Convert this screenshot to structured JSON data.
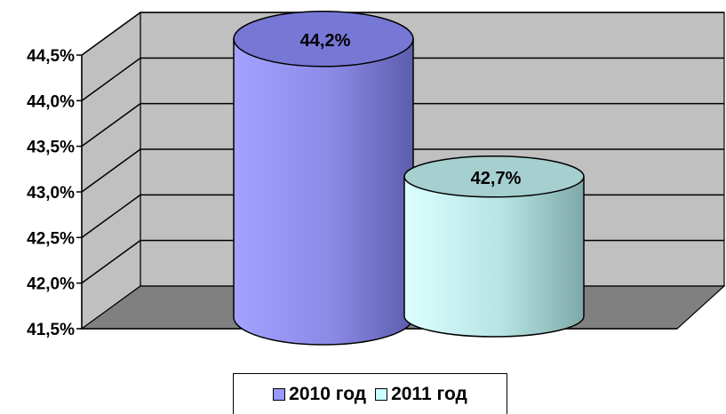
{
  "chart_data": {
    "type": "bar",
    "bar_shape": "cylinder-3d",
    "categories": [
      "2010 год",
      "2011 год"
    ],
    "values": [
      44.2,
      42.7
    ],
    "data_labels": [
      "44,2%",
      "42,7%"
    ],
    "ylim": [
      41.5,
      44.5
    ],
    "yticks": [
      "41,5%",
      "42,0%",
      "42,5%",
      "43,0%",
      "43,5%",
      "44,0%",
      "44,5%"
    ],
    "grid": true,
    "legend_position": "bottom",
    "legend": [
      {
        "label": "2010 год",
        "color": "#9999ff"
      },
      {
        "label": "2011 год",
        "color": "#ccffff"
      }
    ],
    "colors": {
      "back_wall": "#c0c0c0",
      "floor": "#808080",
      "series_2010": "#9999ff",
      "series_2011": "#ccffff"
    }
  }
}
